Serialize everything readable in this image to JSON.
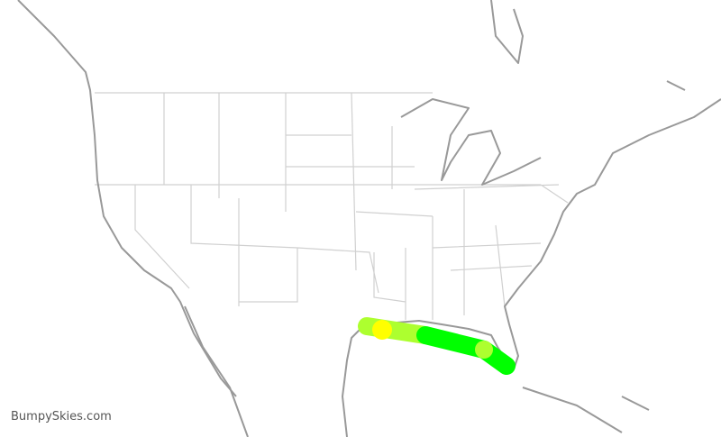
{
  "credit": "BumpySkies.com",
  "colors": {
    "smooth": "#00ff00",
    "light": "#adff2f",
    "moderate": "#ffff00",
    "coastline": "#999999",
    "state_lines": "#d0d0d0"
  },
  "route_segments": [
    {
      "level": "light"
    },
    {
      "level": "smooth"
    }
  ],
  "markers": [
    {
      "level": "moderate"
    },
    {
      "level": "light"
    }
  ]
}
